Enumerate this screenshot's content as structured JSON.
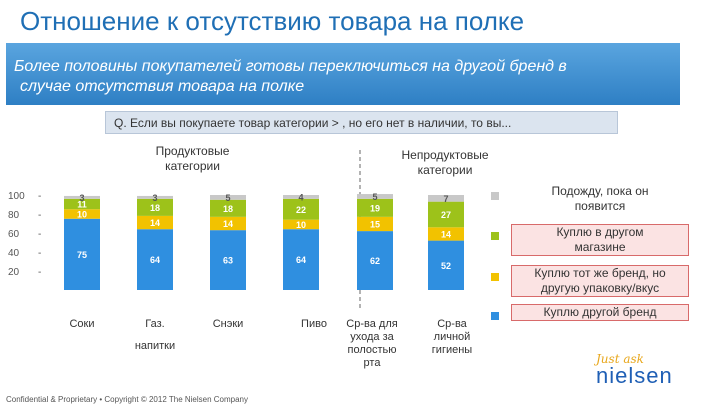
{
  "title": "Отношение к отсутствию товара на полке",
  "banner_text_line1": "Более половины покупателей готовы переключиться на другой бренд в",
  "banner_text_line2": "случае отсутствия товара на полке",
  "question": "Q. Если вы покупаете товар категории > , но его нет в наличии, то вы...",
  "group_labels": {
    "food": [
      "Продуктовые",
      "категории"
    ],
    "nonfood": [
      "Непродуктовые",
      "категории"
    ]
  },
  "legend": [
    {
      "lines": [
        "Подожду, пока он",
        "появится"
      ],
      "color": "#c8c8c8",
      "boxed": false
    },
    {
      "lines": [
        "Куплю в другом",
        "магазине"
      ],
      "color": "#9dc21a",
      "boxed": true
    },
    {
      "lines": [
        "Куплю тот же бренд, но",
        "другую упаковку/вкус"
      ],
      "color": "#f2c200",
      "boxed": true
    },
    {
      "lines": [
        "Куплю другой бренд"
      ],
      "color": "#2f8fe0",
      "boxed": true
    }
  ],
  "chart_data": {
    "type": "bar",
    "stacked": true,
    "yticks": [
      "100",
      "80",
      "60",
      "40",
      "20"
    ],
    "ylim": [
      0,
      100
    ],
    "categories": [
      [
        "Соки"
      ],
      [
        "Газ.",
        "напитки"
      ],
      [
        "Снэки"
      ],
      [
        "Пиво"
      ],
      [
        "Ср-ва для",
        "ухода за",
        "полостью",
        "рта"
      ],
      [
        "Ср-ва",
        "личной",
        "гигиены"
      ]
    ],
    "series": [
      {
        "name": "Куплю другой бренд",
        "color": "#2f8fe0",
        "values": [
          75,
          64,
          63,
          64,
          62,
          52
        ]
      },
      {
        "name": "Куплю тот же бренд, но другую упаковку/вкус",
        "color": "#f2c200",
        "values": [
          10,
          14,
          14,
          10,
          15,
          14
        ]
      },
      {
        "name": "Куплю в другом магазине",
        "color": "#9dc21a",
        "values": [
          11,
          18,
          18,
          22,
          19,
          27
        ]
      },
      {
        "name": "Подожду, пока он появится",
        "color": "#c8c8c8",
        "values": [
          3,
          3,
          5,
          4,
          5,
          7
        ]
      }
    ]
  },
  "footer": "Confidential & Proprietary • Copyright © 2012 The Nielsen Company",
  "logo": {
    "script": "Just ask",
    "word": "nielsen"
  }
}
